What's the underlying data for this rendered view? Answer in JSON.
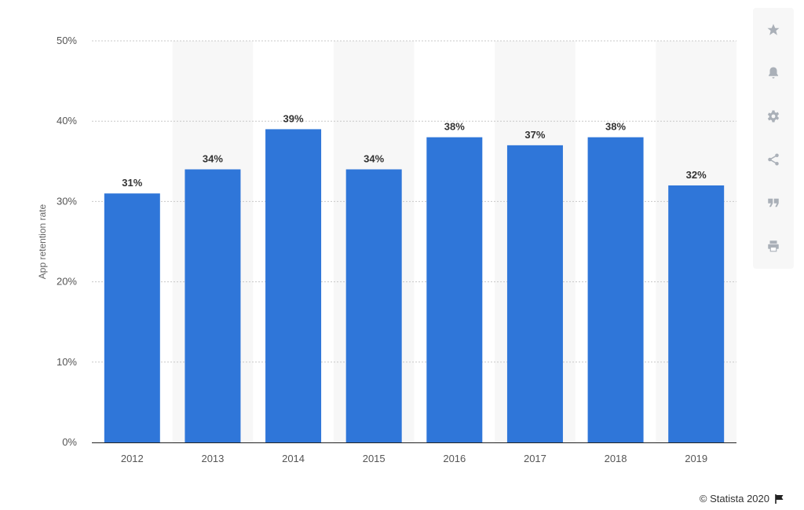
{
  "chart_data": {
    "type": "bar",
    "categories": [
      "2012",
      "2013",
      "2014",
      "2015",
      "2016",
      "2017",
      "2018",
      "2019"
    ],
    "values": [
      31,
      34,
      39,
      34,
      38,
      37,
      38,
      32
    ],
    "value_labels": [
      "31%",
      "34%",
      "39%",
      "34%",
      "38%",
      "37%",
      "38%",
      "32%"
    ],
    "ylabel": "App retention rate",
    "ylim": [
      0,
      50
    ],
    "yticks": [
      0,
      10,
      20,
      30,
      40,
      50
    ],
    "ytick_labels": [
      "0%",
      "10%",
      "20%",
      "30%",
      "40%",
      "50%"
    ],
    "grid": true,
    "bar_color": "#2f76d9",
    "alt_band_color": "#f7f7f7"
  },
  "toolbar": {
    "buttons": [
      "star-icon",
      "bell-icon",
      "gear-icon",
      "share-icon",
      "quote-icon",
      "print-icon"
    ]
  },
  "footer": {
    "credit": "© Statista 2020"
  }
}
